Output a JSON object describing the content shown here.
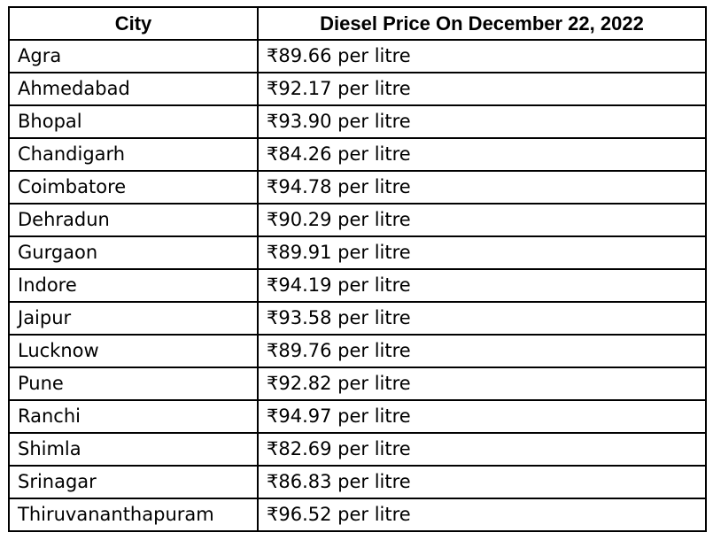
{
  "table": {
    "headers": [
      "City",
      "Diesel Price On December 22, 2022"
    ],
    "rows": [
      [
        "Agra",
        "₹89.66 per litre"
      ],
      [
        "Ahmedabad",
        "₹92.17 per litre"
      ],
      [
        "Bhopal",
        "₹93.90 per litre"
      ],
      [
        "Chandigarh",
        "₹84.26 per litre"
      ],
      [
        "Coimbatore",
        "₹94.78 per litre"
      ],
      [
        "Dehradun",
        "₹90.29 per litre"
      ],
      [
        "Gurgaon",
        "₹89.91 per litre"
      ],
      [
        "Indore",
        "₹94.19 per litre"
      ],
      [
        "Jaipur",
        "₹93.58 per litre"
      ],
      [
        "Lucknow",
        "₹89.76 per litre"
      ],
      [
        "Pune",
        "₹92.82 per litre"
      ],
      [
        "Ranchi",
        "₹94.97 per litre"
      ],
      [
        "Shimla",
        "₹82.69 per litre"
      ],
      [
        "Srinagar",
        "₹86.83 per litre"
      ],
      [
        "Thiruvananthapuram",
        "₹96.52 per litre"
      ]
    ]
  }
}
